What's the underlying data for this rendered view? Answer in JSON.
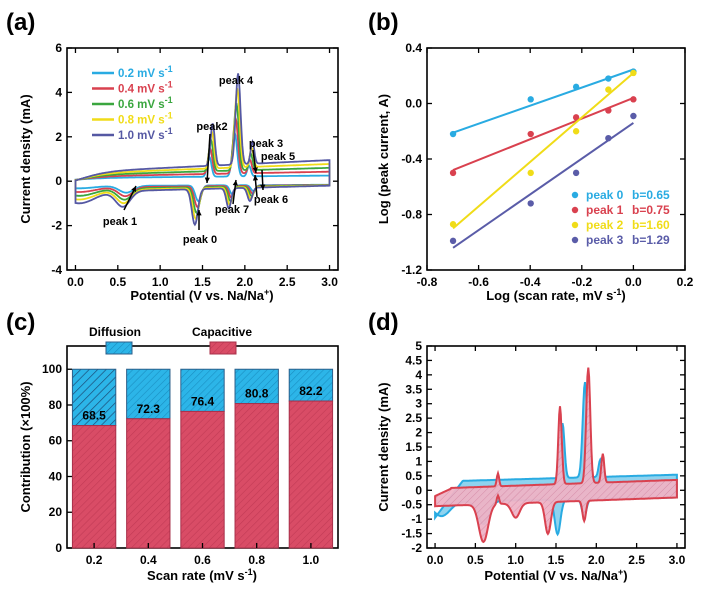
{
  "colors": {
    "c02": "#29abe2",
    "c04": "#d9414f",
    "c06": "#3aa63f",
    "c08": "#f0dc18",
    "c10": "#5558a3",
    "p0": "#29abe2",
    "p1": "#d9414f",
    "p2": "#f0dc18",
    "p3": "#5a5ca8",
    "diffusion": "#2cb5e8",
    "capacitive": "#d94c66",
    "fill_pink": "#e8a0b8",
    "fill_blue": "#8fd3ef"
  },
  "chart_data": [
    {
      "panel": "(a)",
      "type": "line",
      "xlabel": "Potential (V vs. Na/Na",
      "xlabel_sup": "+",
      "xlabel_end": ")",
      "ylabel": "Current density (mA)",
      "xlim": [
        -0.1,
        3.1
      ],
      "ylim": [
        -4,
        6
      ],
      "xticks": [
        "0.0",
        "0.5",
        "1.0",
        "1.5",
        "2.0",
        "2.5",
        "3.0"
      ],
      "yticks": [
        "-4",
        "-2",
        "0",
        "2",
        "4",
        "6"
      ],
      "legend_position": "top-left",
      "series": [
        {
          "name": "0.2 mV s",
          "name_sup": "-1",
          "color_key": "c02",
          "scale": 0.2,
          "peak_offset": 0.0
        },
        {
          "name": "0.4 mV s",
          "name_sup": "-1",
          "color_key": "c04",
          "scale": 0.4,
          "peak_offset": 0.01
        },
        {
          "name": "0.6 mV s",
          "name_sup": "-1",
          "color_key": "c06",
          "scale": 0.6,
          "peak_offset": 0.02
        },
        {
          "name": "0.8 mV s",
          "name_sup": "-1",
          "color_key": "c08",
          "scale": 0.8,
          "peak_offset": 0.03
        },
        {
          "name": "1.0 mV s",
          "name_sup": "-1",
          "color_key": "c10",
          "scale": 1.0,
          "peak_offset": 0.04
        }
      ],
      "oxidation_peaks": [
        {
          "x": 1.58,
          "y": 1.9,
          "w": 0.035
        },
        {
          "x": 1.88,
          "y": 4.1,
          "w": 0.04
        },
        {
          "x": 2.05,
          "y": 1.0,
          "w": 0.03
        }
      ],
      "reduction_peaks": [
        {
          "x": 0.6,
          "y": -0.7,
          "w": 0.12
        },
        {
          "x": 1.45,
          "y": -1.6,
          "w": 0.05
        },
        {
          "x": 1.85,
          "y": -0.9,
          "w": 0.04
        },
        {
          "x": 2.1,
          "y": -0.6,
          "w": 0.04
        }
      ],
      "annotations": [
        "peak 4",
        "peak2",
        "peak 3",
        "peak 5",
        "peak 6",
        "peak 7",
        "peak 1",
        "peak 0"
      ]
    },
    {
      "panel": "(b)",
      "type": "scatter",
      "xlabel": "Log (scan rate, mV s",
      "xlabel_sup": "-1",
      "xlabel_end": ")",
      "ylabel": "Log (peak current, A)",
      "xlim": [
        -0.8,
        0.2
      ],
      "ylim": [
        -1.2,
        0.4
      ],
      "xticks": [
        "-0.8",
        "-0.6",
        "-0.4",
        "-0.2",
        "0.0",
        "0.2"
      ],
      "yticks": [
        "-1.2",
        "-0.8",
        "-0.4",
        "0.0",
        "0.4"
      ],
      "legend_position": "bottom-right",
      "x": [
        -0.699,
        -0.398,
        -0.222,
        -0.097,
        0.0
      ],
      "series": [
        {
          "name": "peak 0",
          "b_label": "b=0.65",
          "color_key": "p0",
          "values": [
            -0.22,
            0.03,
            0.12,
            0.18,
            0.23
          ],
          "fit": [
            -0.21,
            0.245
          ]
        },
        {
          "name": "peak 1",
          "b_label": "b=0.75",
          "color_key": "p1",
          "values": [
            -0.5,
            -0.22,
            -0.1,
            -0.05,
            0.03
          ],
          "fit": [
            -0.48,
            0.04
          ]
        },
        {
          "name": "peak 2",
          "b_label": "b=1.60",
          "color_key": "p2",
          "values": [
            -0.87,
            -0.5,
            -0.2,
            0.1,
            0.22
          ],
          "fit": [
            -0.9,
            0.22
          ]
        },
        {
          "name": "peak 3",
          "b_label": "b=1.29",
          "color_key": "p3",
          "values": [
            -0.99,
            -0.72,
            -0.5,
            -0.25,
            -0.09
          ],
          "fit": [
            -1.04,
            -0.14
          ]
        }
      ]
    },
    {
      "panel": "(c)",
      "type": "bar",
      "xlabel": "Scan rate (mV s",
      "xlabel_sup": "-1",
      "xlabel_end": ")",
      "ylabel": "Contribution (×100%)",
      "ylim": [
        0,
        100
      ],
      "yticks": [
        "0",
        "20",
        "40",
        "60",
        "80",
        "100"
      ],
      "categories": [
        "0.2",
        "0.4",
        "0.6",
        "0.8",
        "1.0"
      ],
      "series": [
        {
          "name": "Capacitive",
          "color_key": "capacitive",
          "values": [
            68.5,
            72.3,
            76.4,
            80.8,
            82.2
          ]
        },
        {
          "name": "Diffusion",
          "color_key": "diffusion",
          "values": [
            31.5,
            27.7,
            23.6,
            19.2,
            17.8
          ]
        }
      ],
      "data_labels": [
        "68.5",
        "72.3",
        "76.4",
        "80.8",
        "82.2"
      ],
      "legend_position": "top"
    },
    {
      "panel": "(d)",
      "type": "area",
      "xlabel": "Potential (V vs. Na/Na",
      "xlabel_sup": "+",
      "xlabel_end": ")",
      "ylabel": "Current density (mA)",
      "xlim": [
        -0.1,
        3.1
      ],
      "ylim": [
        -2,
        5
      ],
      "xticks": [
        "0.0",
        "0.5",
        "1.0",
        "1.5",
        "2.0",
        "2.5",
        "3.0"
      ],
      "yticks": [
        "-2",
        "-1.5",
        "-1",
        "-0.5",
        "0",
        "0.5",
        "1",
        "1.5",
        "2",
        "2.5",
        "3",
        "3.5",
        "4",
        "4.5",
        "5"
      ]
    }
  ]
}
